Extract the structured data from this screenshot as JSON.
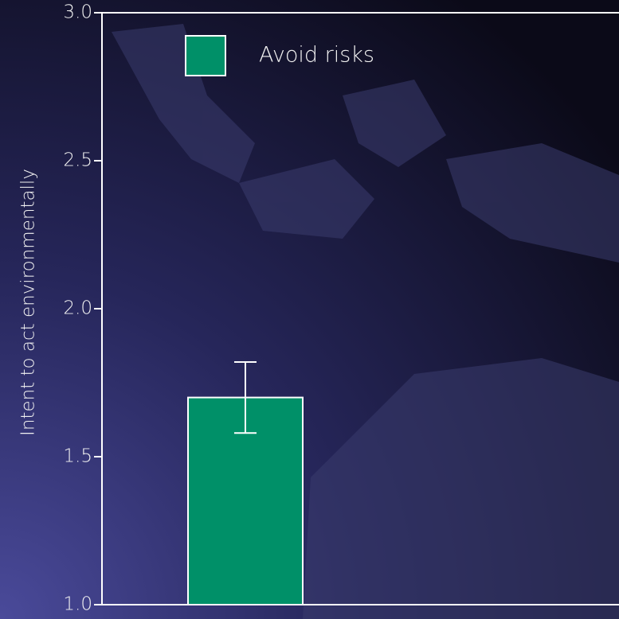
{
  "chart_data": {
    "type": "bar",
    "y_label": "Intent to act environmentally",
    "categories": [
      null
    ],
    "series": [
      {
        "name": "Avoid risks",
        "color": "#009068",
        "values": [
          1.7
        ],
        "errors": [
          0.12
        ]
      }
    ],
    "ylim": [
      1.0,
      3.0
    ],
    "yticks": [
      {
        "value": 1.0,
        "label": "1.0"
      },
      1.5,
      {
        "value": 2.0,
        "label": "2.0"
      },
      2.5,
      {
        "value": 3.0,
        "label": "3.0"
      }
    ],
    "legend": "upper left"
  }
}
